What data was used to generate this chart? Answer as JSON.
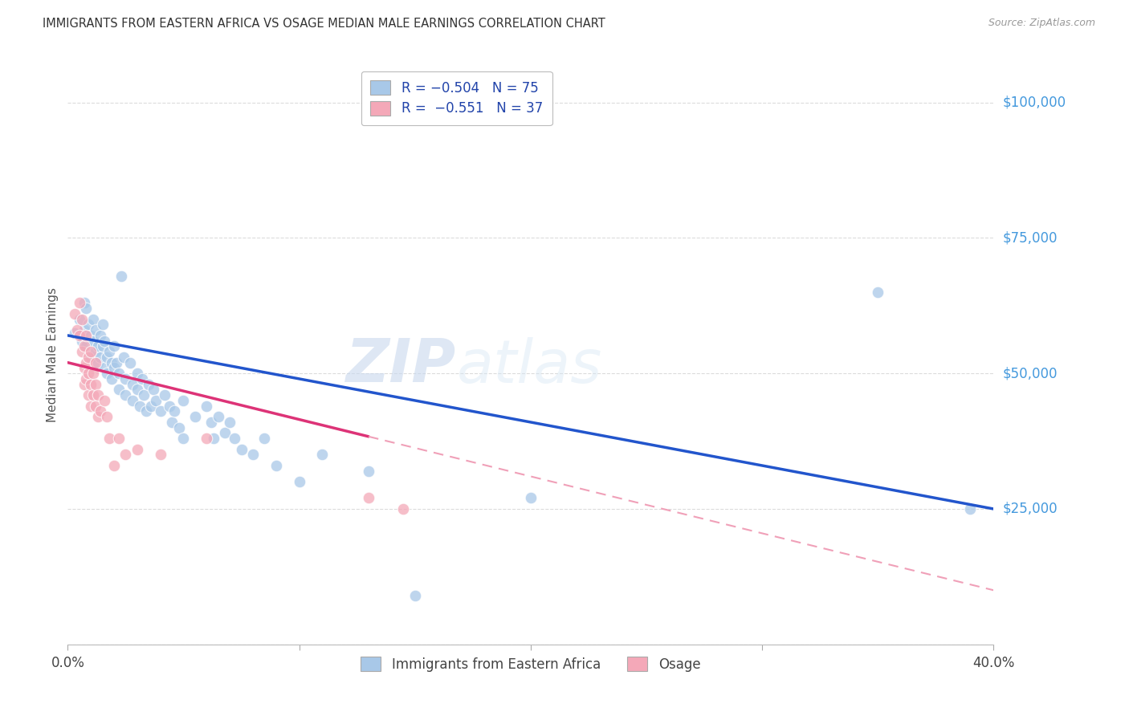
{
  "title": "IMMIGRANTS FROM EASTERN AFRICA VS OSAGE MEDIAN MALE EARNINGS CORRELATION CHART",
  "source": "Source: ZipAtlas.com",
  "ylabel": "Median Male Earnings",
  "legend_label_blue": "Immigrants from Eastern Africa",
  "legend_label_pink": "Osage",
  "blue_color": "#a8c8e8",
  "pink_color": "#f4a8b8",
  "blue_line_color": "#2255cc",
  "pink_line_color": "#dd3377",
  "pink_dash_color": "#f0a0b8",
  "ytick_color": "#4499dd",
  "xlim": [
    0.0,
    0.4
  ],
  "ylim": [
    0,
    107000
  ],
  "yticks": [
    0,
    25000,
    50000,
    75000,
    100000
  ],
  "ytick_labels": [
    "",
    "$25,000",
    "$50,000",
    "$75,000",
    "$100,000"
  ],
  "xticks": [
    0.0,
    0.1,
    0.2,
    0.3,
    0.4
  ],
  "xtick_labels": [
    "0.0%",
    "",
    "",
    "",
    "40.0%"
  ],
  "watermark": "ZIPatlas",
  "background_color": "#ffffff",
  "grid_color": "#cccccc",
  "blue_line_x0": 0.0,
  "blue_line_y0": 57000,
  "blue_line_x1": 0.4,
  "blue_line_y1": 25000,
  "pink_line_x0": 0.0,
  "pink_line_y0": 52000,
  "pink_line_x1_solid": 0.13,
  "pink_line_x1": 0.4,
  "pink_line_y1": 10000,
  "blue_scatter": [
    [
      0.003,
      57500
    ],
    [
      0.005,
      60000
    ],
    [
      0.006,
      56000
    ],
    [
      0.007,
      63000
    ],
    [
      0.007,
      58000
    ],
    [
      0.008,
      55000
    ],
    [
      0.008,
      62000
    ],
    [
      0.009,
      59000
    ],
    [
      0.01,
      57000
    ],
    [
      0.01,
      53000
    ],
    [
      0.011,
      60000
    ],
    [
      0.011,
      56000
    ],
    [
      0.012,
      54000
    ],
    [
      0.012,
      58000
    ],
    [
      0.013,
      55000
    ],
    [
      0.013,
      52000
    ],
    [
      0.014,
      57000
    ],
    [
      0.014,
      53000
    ],
    [
      0.015,
      59000
    ],
    [
      0.015,
      55000
    ],
    [
      0.016,
      51000
    ],
    [
      0.016,
      56000
    ],
    [
      0.017,
      53000
    ],
    [
      0.017,
      50000
    ],
    [
      0.018,
      54000
    ],
    [
      0.019,
      52000
    ],
    [
      0.019,
      49000
    ],
    [
      0.02,
      55000
    ],
    [
      0.02,
      51000
    ],
    [
      0.021,
      52000
    ],
    [
      0.022,
      50000
    ],
    [
      0.022,
      47000
    ],
    [
      0.023,
      68000
    ],
    [
      0.024,
      53000
    ],
    [
      0.025,
      49000
    ],
    [
      0.025,
      46000
    ],
    [
      0.027,
      52000
    ],
    [
      0.028,
      48000
    ],
    [
      0.028,
      45000
    ],
    [
      0.03,
      50000
    ],
    [
      0.03,
      47000
    ],
    [
      0.031,
      44000
    ],
    [
      0.032,
      49000
    ],
    [
      0.033,
      46000
    ],
    [
      0.034,
      43000
    ],
    [
      0.035,
      48000
    ],
    [
      0.036,
      44000
    ],
    [
      0.037,
      47000
    ],
    [
      0.038,
      45000
    ],
    [
      0.04,
      43000
    ],
    [
      0.042,
      46000
    ],
    [
      0.044,
      44000
    ],
    [
      0.045,
      41000
    ],
    [
      0.046,
      43000
    ],
    [
      0.048,
      40000
    ],
    [
      0.05,
      45000
    ],
    [
      0.05,
      38000
    ],
    [
      0.055,
      42000
    ],
    [
      0.06,
      44000
    ],
    [
      0.062,
      41000
    ],
    [
      0.063,
      38000
    ],
    [
      0.065,
      42000
    ],
    [
      0.068,
      39000
    ],
    [
      0.07,
      41000
    ],
    [
      0.072,
      38000
    ],
    [
      0.075,
      36000
    ],
    [
      0.08,
      35000
    ],
    [
      0.085,
      38000
    ],
    [
      0.09,
      33000
    ],
    [
      0.1,
      30000
    ],
    [
      0.11,
      35000
    ],
    [
      0.13,
      32000
    ],
    [
      0.15,
      9000
    ],
    [
      0.2,
      27000
    ],
    [
      0.35,
      65000
    ],
    [
      0.39,
      25000
    ]
  ],
  "pink_scatter": [
    [
      0.003,
      61000
    ],
    [
      0.004,
      58000
    ],
    [
      0.005,
      63000
    ],
    [
      0.005,
      57000
    ],
    [
      0.006,
      60000
    ],
    [
      0.006,
      54000
    ],
    [
      0.007,
      55000
    ],
    [
      0.007,
      51000
    ],
    [
      0.007,
      48000
    ],
    [
      0.008,
      57000
    ],
    [
      0.008,
      52000
    ],
    [
      0.008,
      49000
    ],
    [
      0.009,
      53000
    ],
    [
      0.009,
      50000
    ],
    [
      0.009,
      46000
    ],
    [
      0.01,
      54000
    ],
    [
      0.01,
      48000
    ],
    [
      0.01,
      44000
    ],
    [
      0.011,
      50000
    ],
    [
      0.011,
      46000
    ],
    [
      0.012,
      52000
    ],
    [
      0.012,
      48000
    ],
    [
      0.012,
      44000
    ],
    [
      0.013,
      46000
    ],
    [
      0.013,
      42000
    ],
    [
      0.014,
      43000
    ],
    [
      0.016,
      45000
    ],
    [
      0.017,
      42000
    ],
    [
      0.018,
      38000
    ],
    [
      0.02,
      33000
    ],
    [
      0.022,
      38000
    ],
    [
      0.025,
      35000
    ],
    [
      0.03,
      36000
    ],
    [
      0.04,
      35000
    ],
    [
      0.06,
      38000
    ],
    [
      0.13,
      27000
    ],
    [
      0.145,
      25000
    ]
  ]
}
